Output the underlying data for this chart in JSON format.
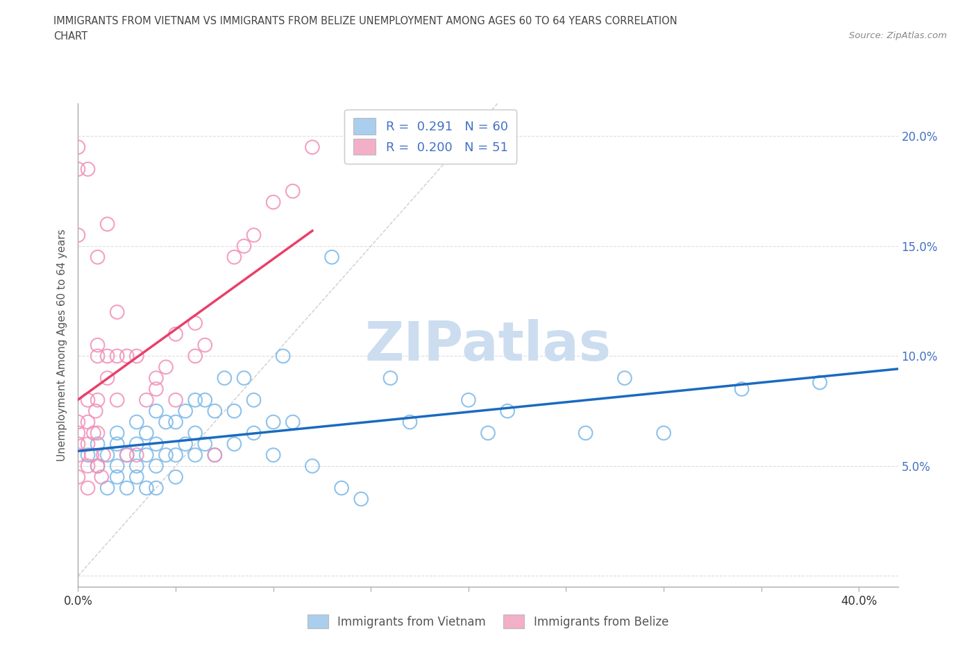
{
  "title_line1": "IMMIGRANTS FROM VIETNAM VS IMMIGRANTS FROM BELIZE UNEMPLOYMENT AMONG AGES 60 TO 64 YEARS CORRELATION",
  "title_line2": "CHART",
  "source": "Source: ZipAtlas.com",
  "ylabel": "Unemployment Among Ages 60 to 64 years",
  "xlim": [
    0.0,
    0.42
  ],
  "ylim": [
    -0.005,
    0.215
  ],
  "legend_r1_label": "R =  0.291   N = 60",
  "legend_r2_label": "R =  0.200   N = 51",
  "legend_color1": "#aacfee",
  "legend_color2": "#f4afc8",
  "color_vietnam": "#7ab8e8",
  "color_belize": "#f090b8",
  "trendline_vietnam_color": "#1a6abf",
  "trendline_belize_color": "#e8406a",
  "diagonal_color": "#c8c8c8",
  "watermark": "ZIPatlas",
  "watermark_color": "#ccddf0",
  "vietnam_x": [
    0.005,
    0.01,
    0.01,
    0.015,
    0.015,
    0.02,
    0.02,
    0.02,
    0.02,
    0.025,
    0.025,
    0.03,
    0.03,
    0.03,
    0.03,
    0.035,
    0.035,
    0.035,
    0.04,
    0.04,
    0.04,
    0.04,
    0.045,
    0.045,
    0.05,
    0.05,
    0.05,
    0.055,
    0.055,
    0.06,
    0.06,
    0.06,
    0.065,
    0.065,
    0.07,
    0.07,
    0.075,
    0.08,
    0.08,
    0.085,
    0.09,
    0.09,
    0.1,
    0.1,
    0.105,
    0.11,
    0.12,
    0.13,
    0.135,
    0.145,
    0.16,
    0.17,
    0.2,
    0.21,
    0.22,
    0.26,
    0.28,
    0.3,
    0.34,
    0.38
  ],
  "vietnam_y": [
    0.055,
    0.05,
    0.06,
    0.04,
    0.055,
    0.045,
    0.05,
    0.06,
    0.065,
    0.04,
    0.055,
    0.045,
    0.05,
    0.06,
    0.07,
    0.04,
    0.055,
    0.065,
    0.04,
    0.05,
    0.06,
    0.075,
    0.055,
    0.07,
    0.045,
    0.055,
    0.07,
    0.06,
    0.075,
    0.055,
    0.065,
    0.08,
    0.06,
    0.08,
    0.055,
    0.075,
    0.09,
    0.06,
    0.075,
    0.09,
    0.065,
    0.08,
    0.055,
    0.07,
    0.1,
    0.07,
    0.05,
    0.145,
    0.04,
    0.035,
    0.09,
    0.07,
    0.08,
    0.065,
    0.075,
    0.065,
    0.09,
    0.065,
    0.085,
    0.088
  ],
  "belize_x": [
    0.0,
    0.0,
    0.0,
    0.0,
    0.0,
    0.005,
    0.005,
    0.005,
    0.005,
    0.005,
    0.007,
    0.008,
    0.009,
    0.01,
    0.01,
    0.01,
    0.01,
    0.01,
    0.012,
    0.013,
    0.015,
    0.015,
    0.02,
    0.02,
    0.02,
    0.025,
    0.025,
    0.03,
    0.03,
    0.035,
    0.04,
    0.04,
    0.045,
    0.05,
    0.05,
    0.06,
    0.06,
    0.065,
    0.07,
    0.08,
    0.085,
    0.09,
    0.1,
    0.11,
    0.12,
    0.0,
    0.0,
    0.0,
    0.005,
    0.01,
    0.015
  ],
  "belize_y": [
    0.055,
    0.06,
    0.065,
    0.07,
    0.045,
    0.05,
    0.06,
    0.07,
    0.08,
    0.04,
    0.055,
    0.065,
    0.075,
    0.05,
    0.065,
    0.08,
    0.1,
    0.105,
    0.045,
    0.055,
    0.09,
    0.1,
    0.08,
    0.1,
    0.12,
    0.055,
    0.1,
    0.055,
    0.1,
    0.08,
    0.085,
    0.09,
    0.095,
    0.08,
    0.11,
    0.1,
    0.115,
    0.105,
    0.055,
    0.145,
    0.15,
    0.155,
    0.17,
    0.175,
    0.195,
    0.185,
    0.155,
    0.195,
    0.185,
    0.145,
    0.16
  ]
}
